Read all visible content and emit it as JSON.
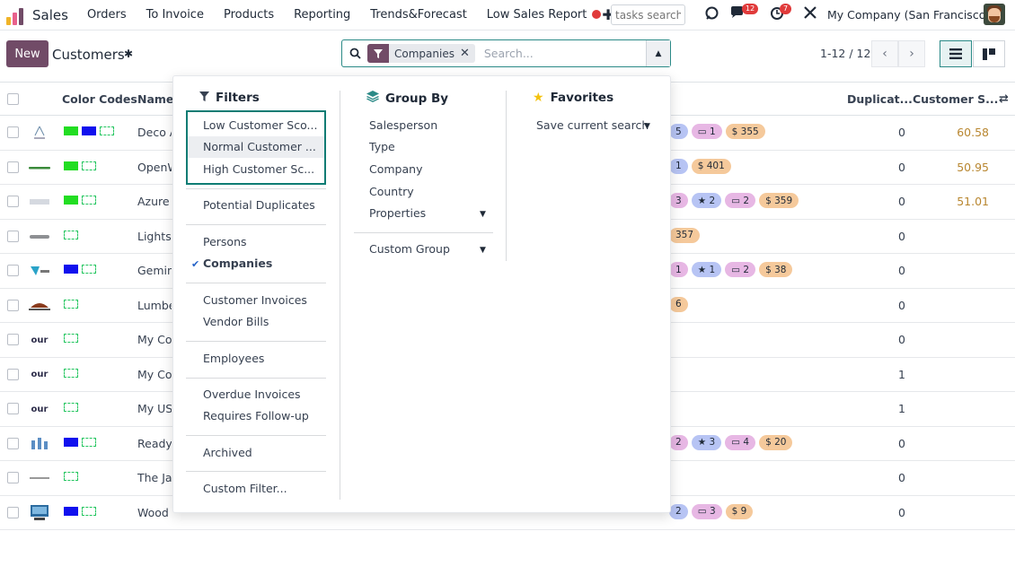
{
  "navbar": {
    "app_name": "Sales",
    "menu": [
      "Orders",
      "To Invoice",
      "Products",
      "Reporting",
      "Trends&Forecast",
      "Low Sales Report"
    ],
    "plus_icon": "plus-icon",
    "tasks_search_placeholder": "tasks search",
    "messages_count": "12",
    "activities_count": "7",
    "company": "My Company (San Francisco)"
  },
  "control": {
    "new_label": "New",
    "breadcrumb": "Customers",
    "facet_label": "Companies",
    "search_placeholder": "Search...",
    "pager": "1-12 / 12"
  },
  "columns": {
    "color_codes": "Color Codes",
    "name": "Name",
    "duplicates": "Duplicat...",
    "customer_score": "Customer S..."
  },
  "rows": [
    {
      "name": "Deco A",
      "dup": "0",
      "score": "60.58",
      "logo": "deco",
      "sw1": "#22dd22",
      "sw2": "#1010ee",
      "badges": [
        [
          "5",
          "b-blue",
          ""
        ],
        [
          "1",
          "b-pink",
          "card"
        ],
        [
          "$ 355",
          "b-orange",
          ""
        ]
      ]
    },
    {
      "name": "OpenW",
      "dup": "0",
      "score": "50.95",
      "logo": "openwood",
      "sw1": "#22dd22",
      "sw2": "",
      "badges": [
        [
          "1",
          "b-blue",
          ""
        ],
        [
          "$ 401",
          "b-orange",
          ""
        ]
      ]
    },
    {
      "name": "Azure",
      "dup": "0",
      "score": "51.01",
      "logo": "azure",
      "sw1": "#22dd22",
      "sw2": "",
      "badges": [
        [
          "3",
          "b-pink",
          ""
        ],
        [
          "2",
          "b-blue",
          "star"
        ],
        [
          "2",
          "b-pink",
          "card"
        ],
        [
          "$ 359",
          "b-orange",
          ""
        ]
      ]
    },
    {
      "name": "LightsU",
      "dup": "0",
      "score": "",
      "logo": "lights",
      "sw1": "",
      "sw2": "",
      "badges": [
        [
          "357",
          "b-orange",
          ""
        ]
      ]
    },
    {
      "name": "Gemin",
      "dup": "0",
      "score": "",
      "logo": "gemini",
      "sw1": "#1010ee",
      "sw2": "",
      "badges": [
        [
          "1",
          "b-pink",
          ""
        ],
        [
          "1",
          "b-blue",
          "star"
        ],
        [
          "2",
          "b-pink",
          "card"
        ],
        [
          "$ 38",
          "b-orange",
          ""
        ]
      ]
    },
    {
      "name": "Lumbe",
      "dup": "0",
      "score": "",
      "logo": "lumber",
      "sw1": "",
      "sw2": "",
      "badges": [
        [
          "6",
          "b-orange",
          ""
        ]
      ]
    },
    {
      "name": "My Cor",
      "dup": "0",
      "score": "",
      "logo": "our",
      "sw1": "",
      "sw2": "",
      "badges": []
    },
    {
      "name": "My Cor",
      "dup": "1",
      "score": "",
      "logo": "our",
      "sw1": "",
      "sw2": "",
      "badges": []
    },
    {
      "name": "My US",
      "dup": "1",
      "score": "",
      "logo": "our",
      "sw1": "",
      "sw2": "",
      "badges": []
    },
    {
      "name": "Ready",
      "dup": "0",
      "score": "",
      "logo": "ready",
      "sw1": "#1010ee",
      "sw2": "",
      "badges": [
        [
          "2",
          "b-pink",
          ""
        ],
        [
          "3",
          "b-blue",
          "star"
        ],
        [
          "4",
          "b-pink",
          "card"
        ],
        [
          "$ 20",
          "b-orange",
          ""
        ]
      ]
    },
    {
      "name": "The Ja",
      "dup": "0",
      "score": "",
      "logo": "theja",
      "sw1": "",
      "sw2": "",
      "badges": []
    },
    {
      "name": "Wood",
      "dup": "0",
      "score": "",
      "logo": "wood",
      "sw1": "#1010ee",
      "sw2": "",
      "badges": [
        [
          "2",
          "b-blue",
          ""
        ],
        [
          "3",
          "b-pink",
          "card"
        ],
        [
          "$ 9",
          "b-orange",
          ""
        ]
      ]
    }
  ],
  "filters": {
    "title": "Filters",
    "score_items": [
      "Low Customer Sco...",
      "Normal Customer ...",
      "High Customer Sc..."
    ],
    "potential_duplicates": "Potential Duplicates",
    "persons": "Persons",
    "companies": "Companies",
    "customer_invoices": "Customer Invoices",
    "vendor_bills": "Vendor Bills",
    "employees": "Employees",
    "overdue_invoices": "Overdue Invoices",
    "requires_followup": "Requires Follow-up",
    "archived": "Archived",
    "custom_filter": "Custom Filter..."
  },
  "group_by": {
    "title": "Group By",
    "items": [
      "Salesperson",
      "Type",
      "Company",
      "Country",
      "Properties"
    ],
    "custom_group": "Custom Group"
  },
  "favorites": {
    "title": "Favorites",
    "save_current": "Save current search"
  }
}
